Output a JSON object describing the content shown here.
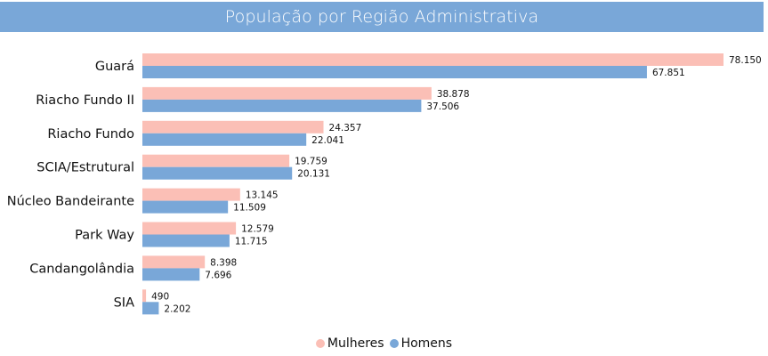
{
  "chart_data": {
    "type": "bar",
    "orientation": "horizontal",
    "title": "População por Região Administrativa",
    "categories": [
      "Guará",
      "Riacho Fundo II",
      "Riacho Fundo",
      "SCIA/Estrutural",
      "Núcleo Bandeirante",
      "Park Way",
      "Candangolândia",
      "SIA"
    ],
    "series": [
      {
        "name": "Mulheres",
        "color": "#fbbfb6",
        "values": [
          78150,
          38878,
          24357,
          19759,
          13145,
          12579,
          8398,
          490
        ],
        "labels": [
          "78.150",
          "38.878",
          "24.357",
          "19.759",
          "13.145",
          "12.579",
          "8.398",
          "490"
        ]
      },
      {
        "name": "Homens",
        "color": "#79a7d8",
        "values": [
          67851,
          37506,
          22041,
          20131,
          11509,
          11715,
          7696,
          2202
        ],
        "labels": [
          "67.851",
          "37.506",
          "22.041",
          "20.131",
          "11.509",
          "11.715",
          "7.696",
          "2.202"
        ]
      }
    ],
    "xlim": [
      0,
      78150
    ],
    "grid": false,
    "legend_position": "bottom"
  },
  "colors": {
    "header": "#79a7d8"
  }
}
